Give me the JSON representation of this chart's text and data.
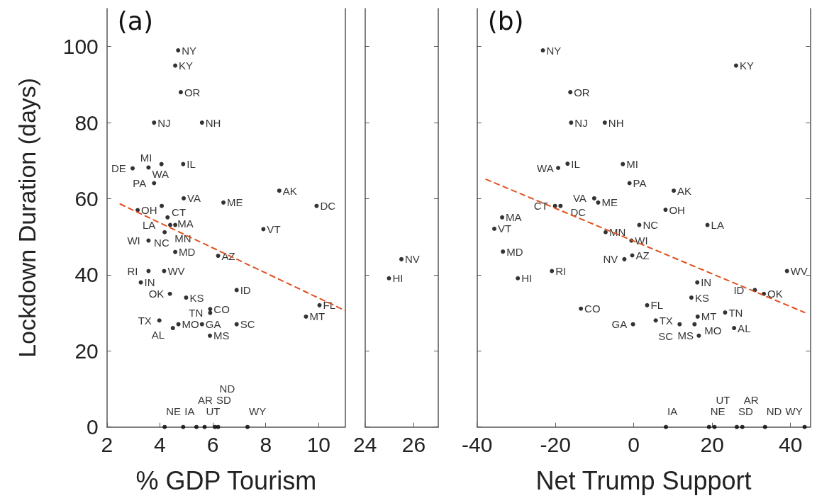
{
  "chart_data": [
    {
      "type": "scatter",
      "title": "(a)",
      "xlabel": "% GDP Tourism",
      "ylabel": "Lockdown Duration (days)",
      "xlim": [
        2,
        11
      ],
      "ylim": [
        0,
        110
      ],
      "xticks": [
        2,
        4,
        6,
        8,
        10
      ],
      "yticks": [
        0,
        20,
        40,
        60,
        80,
        100
      ],
      "series": [
        {
          "type": "scatter",
          "marker": "circle",
          "color": "#000000",
          "x": [
            4.69,
            4.58,
            4.79,
            3.78,
            5.59,
            2.97,
            3.57,
            4.06,
            4.88,
            3.78,
            4.9,
            6.4,
            8.51,
            9.92,
            3.16,
            4.07,
            4.29,
            4.39,
            4.58,
            7.91,
            4.18,
            3.57,
            4.58,
            6.2,
            3.57,
            4.16,
            3.28,
            6.9,
            4.38,
            4.99,
            10.03,
            5.9,
            5.9,
            9.52,
            3.98,
            4.7,
            5.59,
            6.9,
            4.49,
            5.89,
            4.18,
            4.88,
            5.38,
            5.69,
            6.08,
            6.2,
            7.31
          ],
          "values": [
            99,
            95,
            88,
            80,
            80,
            68,
            68.2,
            69.1,
            69.1,
            64.1,
            60.1,
            59,
            62.1,
            58.1,
            57,
            58.1,
            55.1,
            53.1,
            53.1,
            52,
            51.2,
            49,
            46,
            45,
            41,
            41,
            38,
            36,
            35,
            34,
            32,
            31,
            30,
            29,
            28,
            27,
            27,
            27,
            26,
            24,
            0,
            0,
            0,
            0,
            0,
            0,
            0
          ],
          "value_labels": [
            "NY",
            "KY",
            "OR",
            "NJ",
            "NH",
            "DE",
            "WA",
            "MI",
            "IL",
            "PA",
            "VA",
            "ME",
            "AK",
            "DC",
            "OH",
            "CT",
            "MA",
            "LA",
            "NC",
            "VT",
            "MN",
            "WI",
            "MD",
            "AZ",
            "RI",
            "WV",
            "IN",
            "ID",
            "OK",
            "KS",
            "FL",
            "CO",
            "TN",
            "MT",
            "TX",
            "MO",
            "GA",
            "SC",
            "AL",
            "MS",
            "NE",
            "IA",
            "AR",
            "UT",
            "SD",
            "ND",
            "WY"
          ]
        },
        {
          "type": "line",
          "marker": "none",
          "line_style": "dashed",
          "color": "#e0501e",
          "x": [
            2.5,
            11
          ],
          "values": [
            58.6,
            30.6
          ]
        }
      ]
    },
    {
      "type": "scatter",
      "xlim": [
        24,
        27
      ],
      "ylim": [
        0,
        110
      ],
      "xticks": [
        24,
        26
      ],
      "yticks": [
        0,
        20,
        40,
        60,
        80,
        100
      ],
      "tick_labels": "x",
      "series": [
        {
          "type": "scatter",
          "marker": "circle",
          "color": "#000000",
          "x": [
            25.49,
            24.98
          ],
          "values": [
            44.1,
            39.1
          ],
          "value_labels": [
            "NV",
            "HI"
          ]
        }
      ]
    },
    {
      "type": "scatter",
      "title": "(b)",
      "xlabel": "Net Trump Support",
      "xlim": [
        -40,
        45
      ],
      "ylim": [
        0,
        110
      ],
      "xticks": [
        -40,
        -20,
        0,
        20,
        40
      ],
      "yticks": [
        0,
        20,
        40,
        60,
        80,
        100
      ],
      "tick_labels": "x",
      "series": [
        {
          "type": "scatter",
          "marker": "circle",
          "color": "#000000",
          "x": [
            -23.2,
            26.1,
            -16.2,
            -16,
            -7.4,
            -19.3,
            -16.9,
            -2.8,
            -1.1,
            10.2,
            -10.1,
            -9.1,
            -20.1,
            -18.7,
            8.1,
            -33.6,
            -35.6,
            1.4,
            18.8,
            -7.2,
            -0.6,
            -33.4,
            -0.4,
            -2.4,
            -20.9,
            39.1,
            -29.6,
            16.2,
            30.9,
            33.2,
            14.7,
            3.4,
            -13.5,
            23.3,
            16.3,
            5.6,
            -0.2,
            11.7,
            15.5,
            25.6,
            16.6,
            8.2,
            19.2,
            20.6,
            26.3,
            27.7,
            33.5,
            43.6
          ],
          "values": [
            99,
            95,
            88,
            80,
            80,
            68.1,
            69.2,
            69.1,
            64.1,
            62.1,
            60.1,
            59,
            58.1,
            58.1,
            57.1,
            55.1,
            52.1,
            53.1,
            53.1,
            51.2,
            49,
            46.1,
            45.1,
            44.1,
            41,
            41,
            39.1,
            38,
            36,
            35,
            34,
            32,
            31.1,
            30.1,
            29,
            28,
            27,
            27,
            27,
            26,
            24,
            0,
            0,
            0,
            0,
            0,
            0,
            0
          ],
          "value_labels": [
            "NY",
            "KY",
            "OR",
            "NJ",
            "NH",
            "WA",
            "IL",
            "MI",
            "PA",
            "AK",
            "VA",
            "ME",
            "CT",
            "DC",
            "OH",
            "MA",
            "VT",
            "NC",
            "LA",
            "MN",
            "WI",
            "MD",
            "AZ",
            "NV",
            "RI",
            "WV",
            "HI",
            "IN",
            "ID",
            "OK",
            "KS",
            "FL",
            "CO",
            "TN",
            "MT",
            "TX",
            "GA",
            "SC",
            "MO",
            "AL",
            "MS",
            "IA",
            "NE",
            "UT",
            "SD",
            "AR",
            "ND",
            "WY"
          ]
        },
        {
          "type": "line",
          "marker": "none",
          "line_style": "dashed",
          "color": "#e0501e",
          "x": [
            -37.7,
            43.6
          ],
          "values": [
            65.1,
            30.1
          ]
        }
      ]
    }
  ]
}
